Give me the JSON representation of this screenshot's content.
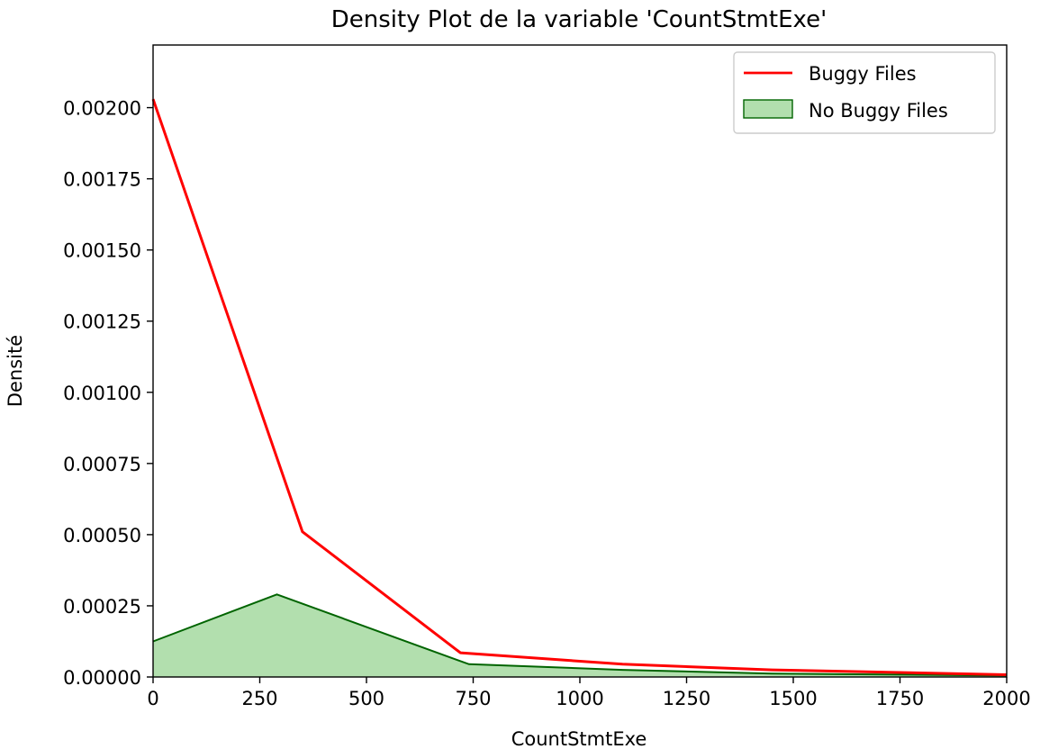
{
  "chart_data": {
    "type": "area",
    "title": "Density Plot de la variable 'CountStmtExe'",
    "xlabel": "CountStmtExe",
    "ylabel": "Densité",
    "xlim": [
      0,
      2000
    ],
    "ylim": [
      0,
      0.00222
    ],
    "xticks": [
      "0",
      "250",
      "500",
      "750",
      "1000",
      "1250",
      "1500",
      "1750",
      "2000"
    ],
    "yticks": [
      "0.00000",
      "0.00025",
      "0.00050",
      "0.00075",
      "0.00100",
      "0.00125",
      "0.00150",
      "0.00175",
      "0.00200"
    ],
    "grid": false,
    "legend_position": "top-right",
    "series": [
      {
        "name": "Buggy Files",
        "style": "line",
        "color": "#ff0000",
        "x": [
          0,
          350,
          720,
          1100,
          1450,
          2000
        ],
        "y": [
          0.00203,
          0.00051,
          8.5e-05,
          4.5e-05,
          2.5e-05,
          8e-06
        ]
      },
      {
        "name": "No Buggy Files",
        "style": "filled",
        "color": "#006400",
        "fill": "#b2dfae",
        "x": [
          0,
          290,
          740,
          1100,
          1450,
          2000
        ],
        "y": [
          0.000125,
          0.00029,
          4.5e-05,
          2.5e-05,
          1.2e-05,
          5e-06
        ]
      }
    ]
  }
}
